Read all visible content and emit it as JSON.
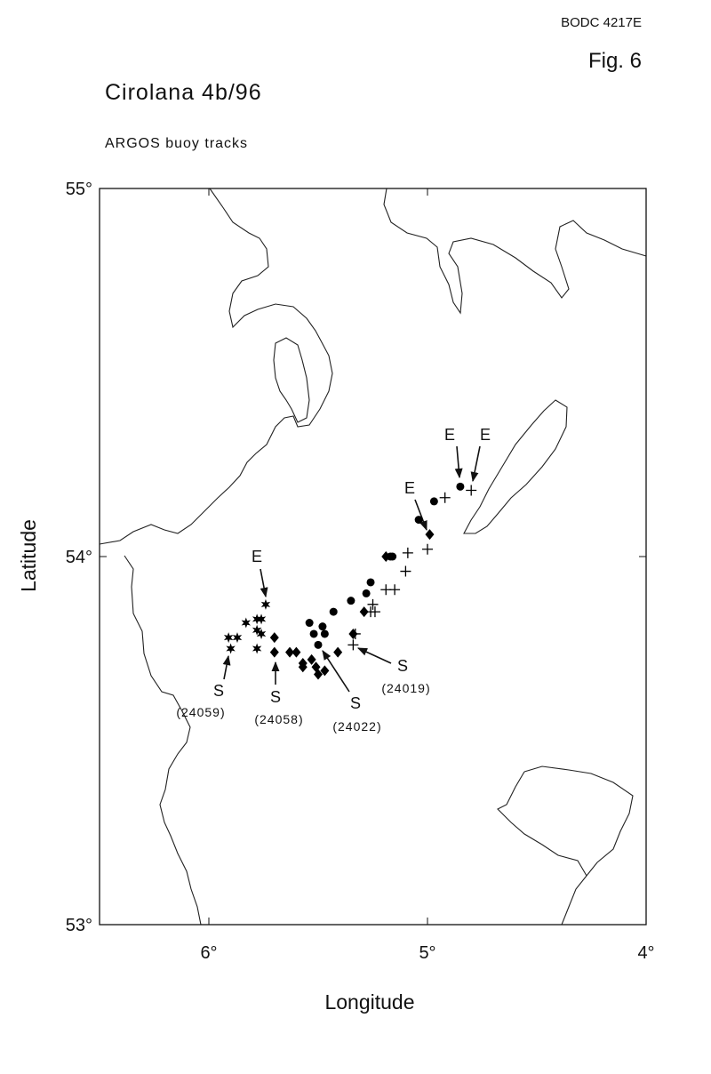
{
  "header": {
    "code": "BODC 4217E",
    "figure": "Fig. 6"
  },
  "chart_data": {
    "type": "scatter",
    "title": "Cirolana 4b/96",
    "subtitle": "ARGOS buoy tracks",
    "x_label": "Longitude",
    "y_label": "Latitude",
    "start_label": "S",
    "end_label": "E",
    "xlim": [
      6.5,
      4
    ],
    "ylim": [
      53,
      55
    ],
    "xticks": [
      {
        "value": 6,
        "label": "6°"
      },
      {
        "value": 5,
        "label": "5°"
      },
      {
        "value": 4,
        "label": "4°"
      }
    ],
    "yticks": [
      {
        "value": 55,
        "label": "55°"
      },
      {
        "value": 54,
        "label": "54°"
      },
      {
        "value": 53,
        "label": "53°"
      }
    ],
    "series": [
      {
        "name": "(24059)",
        "color": "#000000",
        "marker": "star",
        "x": [
          5.91,
          5.87,
          5.9,
          5.83,
          5.78,
          5.76,
          5.78,
          5.76,
          5.78,
          5.74
        ],
        "values": [
          53.78,
          53.78,
          53.75,
          53.82,
          53.83,
          53.83,
          53.8,
          53.79,
          53.75,
          53.87
        ]
      },
      {
        "name": "(24058)",
        "color": "#000000",
        "marker": "diamond",
        "x": [
          5.7,
          5.7,
          5.63,
          5.6,
          5.57,
          5.57,
          5.53,
          5.51,
          5.5,
          5.47,
          5.41,
          5.34,
          5.29,
          5.19,
          4.99
        ],
        "values": [
          53.78,
          53.74,
          53.74,
          53.74,
          53.71,
          53.7,
          53.72,
          53.7,
          53.68,
          53.69,
          53.74,
          53.79,
          53.85,
          54.0,
          54.06
        ]
      },
      {
        "name": "(24022)",
        "color": "#000000",
        "marker": "circle",
        "x": [
          5.54,
          5.52,
          5.5,
          5.48,
          5.47,
          5.43,
          5.35,
          5.28,
          5.26,
          5.17,
          5.16,
          5.04,
          4.97,
          4.85
        ],
        "values": [
          53.82,
          53.79,
          53.76,
          53.81,
          53.79,
          53.85,
          53.88,
          53.9,
          53.93,
          54.0,
          54.0,
          54.1,
          54.15,
          54.19
        ]
      },
      {
        "name": "(24019)",
        "color": "#000000",
        "marker": "plus",
        "x": [
          5.34,
          5.33,
          5.26,
          5.25,
          5.24,
          5.19,
          5.15,
          5.1,
          5.09,
          5.0,
          4.92,
          4.8
        ],
        "values": [
          53.76,
          53.79,
          53.85,
          53.87,
          53.85,
          53.91,
          53.91,
          53.96,
          54.01,
          54.02,
          54.16,
          54.18
        ]
      }
    ]
  }
}
